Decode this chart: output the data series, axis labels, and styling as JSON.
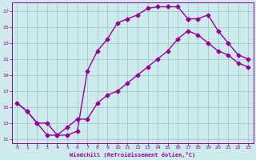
{
  "xlabel": "Windchill (Refroidissement éolien,°C)",
  "bg_color": "#cdeaec",
  "line_color": "#990099",
  "grid_color": "#a8cdd0",
  "xlim": [
    -0.5,
    23.5
  ],
  "ylim": [
    10.5,
    28.0
  ],
  "xticks": [
    0,
    1,
    2,
    3,
    4,
    5,
    6,
    7,
    8,
    9,
    10,
    11,
    12,
    13,
    14,
    15,
    16,
    17,
    18,
    19,
    20,
    21,
    22,
    23
  ],
  "yticks": [
    11,
    13,
    15,
    17,
    19,
    21,
    23,
    25,
    27
  ],
  "upper_curve_x": [
    1,
    2,
    3,
    4,
    5,
    6,
    7,
    8,
    9,
    10,
    11,
    12,
    13,
    14,
    15,
    16,
    17
  ],
  "upper_curve_y": [
    14.5,
    13.0,
    13.0,
    11.5,
    11.5,
    12.0,
    19.5,
    22.0,
    23.5,
    25.5,
    26.0,
    26.5,
    27.3,
    27.5,
    27.5,
    27.5,
    26.0
  ],
  "lower_curve_x": [
    0,
    1,
    2,
    3,
    4,
    5,
    6,
    7,
    8,
    9,
    10,
    11,
    12,
    13,
    14,
    15,
    16,
    17,
    18,
    19,
    20,
    21,
    22,
    23
  ],
  "lower_curve_y": [
    15.5,
    14.5,
    13.0,
    11.5,
    11.5,
    12.5,
    13.5,
    13.5,
    15.5,
    16.5,
    17.0,
    18.0,
    19.0,
    20.0,
    21.0,
    22.0,
    23.5,
    24.5,
    24.0,
    23.0,
    22.0,
    21.5,
    20.5,
    20.0
  ],
  "right_segment_x": [
    17,
    18,
    19,
    20,
    21,
    22,
    23
  ],
  "right_segment_y": [
    26.0,
    26.0,
    26.5,
    24.5,
    23.0,
    21.5,
    21.0
  ]
}
